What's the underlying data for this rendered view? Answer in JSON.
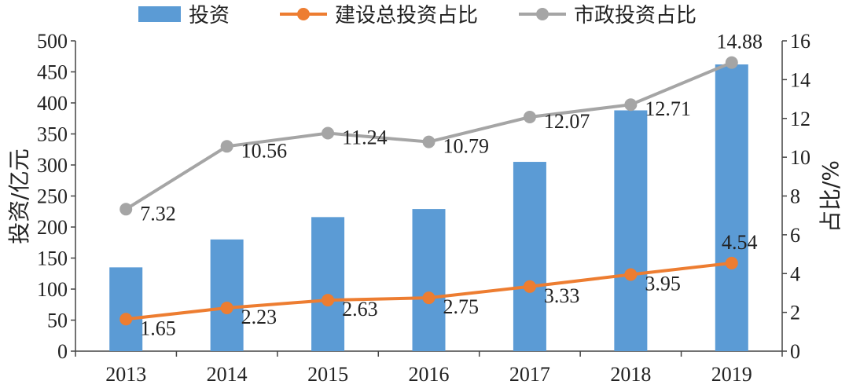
{
  "chart_data": {
    "type": "bar",
    "categories": [
      "2013",
      "2014",
      "2015",
      "2016",
      "2017",
      "2018",
      "2019"
    ],
    "series": [
      {
        "name": "投资",
        "type": "bar",
        "axis": "left",
        "color": "#5b9bd5",
        "values": [
          135,
          180,
          216,
          229,
          305,
          388,
          462
        ]
      },
      {
        "name": "建设总投资占比",
        "type": "line",
        "axis": "right",
        "color": "#ed7d31",
        "values": [
          1.65,
          2.23,
          2.63,
          2.75,
          3.33,
          3.95,
          4.54
        ],
        "labels": [
          "1.65",
          "2.23",
          "2.63",
          "2.75",
          "3.33",
          "3.95",
          "4.54"
        ]
      },
      {
        "name": "市政投资占比",
        "type": "line",
        "axis": "right",
        "color": "#a5a5a5",
        "values": [
          7.32,
          10.56,
          11.24,
          10.79,
          12.07,
          12.71,
          14.88
        ],
        "labels": [
          "7.32",
          "10.56",
          "11.24",
          "10.79",
          "12.07",
          "12.71",
          "14.88"
        ]
      }
    ],
    "ylabel": "投资/亿元",
    "y2label": "占比/%",
    "ylim": [
      0,
      500
    ],
    "y2lim": [
      0,
      16
    ],
    "yticks": [
      "0",
      "50",
      "100",
      "150",
      "200",
      "250",
      "300",
      "350",
      "400",
      "450",
      "500"
    ],
    "y2ticks": [
      "0",
      "2",
      "4",
      "6",
      "8",
      "10",
      "12",
      "14",
      "16"
    ],
    "legend_position": "top",
    "grid": false
  }
}
